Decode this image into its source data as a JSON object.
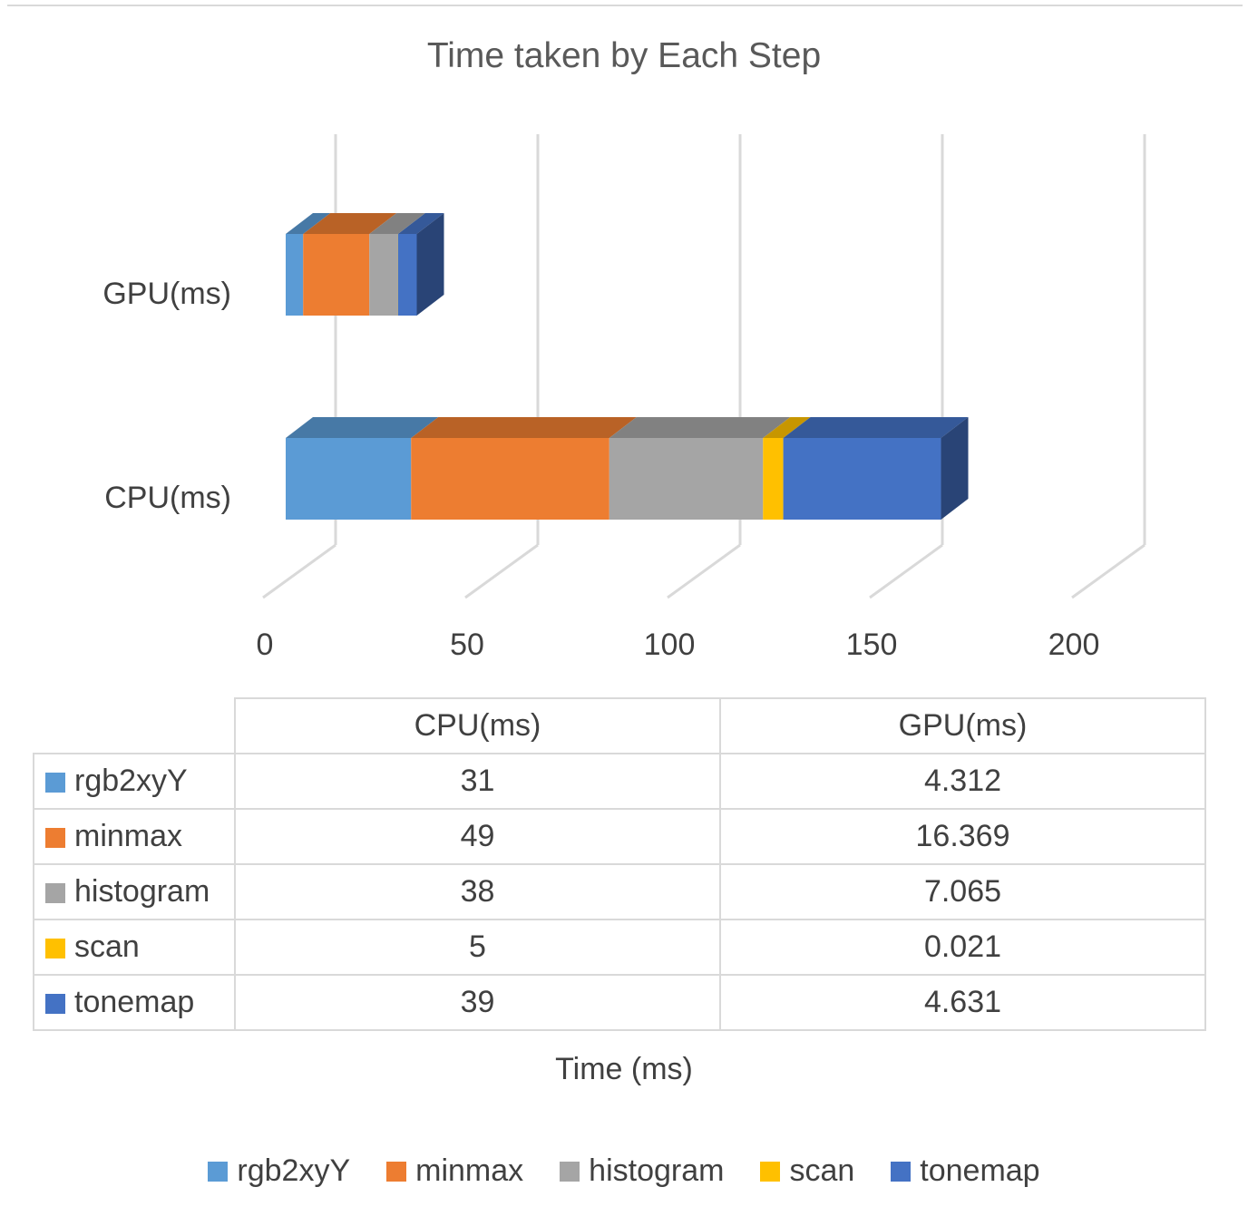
{
  "chart_data": {
    "type": "bar",
    "orientation": "horizontal",
    "stacked": true,
    "style": "3d",
    "title": "Time taken by Each Step",
    "xlabel": "Time (ms)",
    "ylabel": "",
    "xlim": [
      0,
      200
    ],
    "x_ticks": [
      "0",
      "50",
      "100",
      "150",
      "200"
    ],
    "categories": [
      "CPU(ms)",
      "GPU(ms)"
    ],
    "series": [
      {
        "name": "rgb2xyY",
        "color": "#5b9bd5",
        "values": [
          31,
          4.312
        ],
        "labels": [
          "31",
          "4.312"
        ]
      },
      {
        "name": "minmax",
        "color": "#ed7d31",
        "values": [
          49,
          16.369
        ],
        "labels": [
          "49",
          "16.369"
        ]
      },
      {
        "name": "histogram",
        "color": "#a5a5a5",
        "values": [
          38,
          7.065
        ],
        "labels": [
          "38",
          "7.065"
        ]
      },
      {
        "name": "scan",
        "color": "#ffc000",
        "values": [
          5,
          0.021
        ],
        "labels": [
          "5",
          "0.021"
        ]
      },
      {
        "name": "tonemap",
        "color": "#4472c4",
        "values": [
          39,
          4.631
        ],
        "labels": [
          "39",
          "4.631"
        ]
      }
    ],
    "grid": true,
    "legend": "bottom",
    "data_table": true
  }
}
